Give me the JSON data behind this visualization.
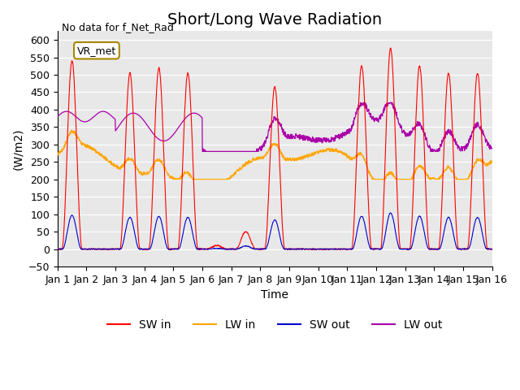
{
  "title": "Short/Long Wave Radiation",
  "ylabel": "(W/m2)",
  "xlabel": "Time",
  "top_left_text": "No data for f_Net_Rad",
  "box_label": "VR_met",
  "ylim": [
    -50,
    625
  ],
  "yticks": [
    -50,
    0,
    50,
    100,
    150,
    200,
    250,
    300,
    350,
    400,
    450,
    500,
    550,
    600
  ],
  "x_labels": [
    "Jan 1",
    "Jan 2",
    "Jan 3",
    "Jan 4",
    "Jan 5",
    "Jan 6",
    "Jan 7",
    "Jan 8",
    "Jan 9",
    "Jan 10",
    "Jan 11",
    "Jan 12",
    "Jan 13",
    "Jan 14",
    "Jan 15",
    "Jan 16"
  ],
  "n_days": 15,
  "points_per_day": 96,
  "SW_in_color": "#FF0000",
  "LW_in_color": "#FFA500",
  "SW_out_color": "#0000CC",
  "LW_out_color": "#AA00AA",
  "background_color": "#E8E8E8",
  "title_fontsize": 14,
  "legend_fontsize": 10,
  "axis_label_fontsize": 10,
  "tick_fontsize": 9
}
